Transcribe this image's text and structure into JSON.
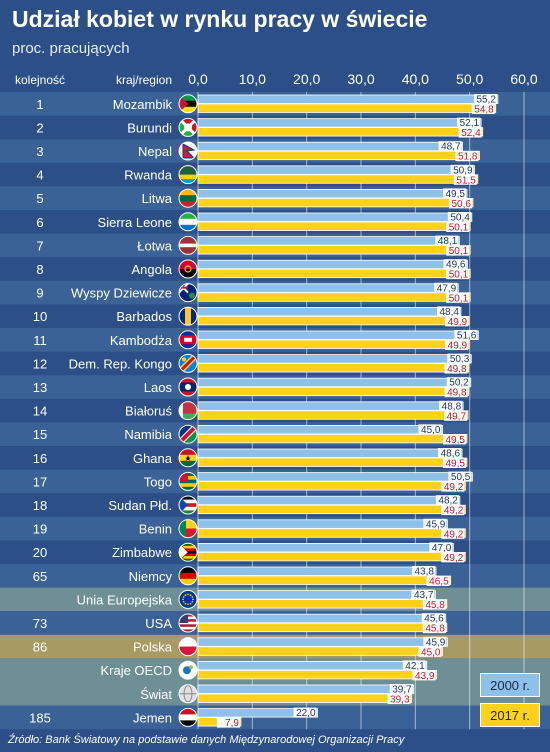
{
  "header": {
    "title": "Udział kobiet w rynku pracy w świecie",
    "subtitle": "proc. pracujących"
  },
  "footer": {
    "source": "Źródło: Bank Światowy na podstawie danych Międzynarodowej Organizacji Pracy"
  },
  "legend": {
    "label_2000": "2000 r.",
    "label_2017": "2017 r."
  },
  "colors": {
    "background": "#2b4f86",
    "row_stripe": "#3a6296",
    "bar_2000": "#8ec1ea",
    "bar_2017": "#ffd21a",
    "highlight_eu": "#6f8f96",
    "highlight_poland": "#a89a63",
    "highlight_oecd": "#6f8f96"
  },
  "chart_data": {
    "type": "bar",
    "orientation": "horizontal",
    "column_headers": {
      "rank": "kolejność",
      "country": "kraj/region"
    },
    "xlim": [
      0,
      60
    ],
    "x_ticks": [
      "0,0",
      "10,0",
      "20,0",
      "30,0",
      "40,0",
      "50,0",
      "60,0"
    ],
    "grid": true,
    "legend_position": "bottom-right",
    "series_names": [
      "2000 r.",
      "2017 r."
    ],
    "rows": [
      {
        "rank": "1",
        "name": "Mozambik",
        "flag": "mozambique-flag-icon",
        "v2000": "55,2",
        "v2017": "54,8"
      },
      {
        "rank": "2",
        "name": "Burundi",
        "flag": "burundi-flag-icon",
        "v2000": "52,1",
        "v2017": "52,4"
      },
      {
        "rank": "3",
        "name": "Nepal",
        "flag": "nepal-flag-icon",
        "v2000": "48,7",
        "v2017": "51,8"
      },
      {
        "rank": "4",
        "name": "Rwanda",
        "flag": "rwanda-flag-icon",
        "v2000": "50,9",
        "v2017": "51,5"
      },
      {
        "rank": "5",
        "name": "Litwa",
        "flag": "lithuania-flag-icon",
        "v2000": "49,5",
        "v2017": "50,6"
      },
      {
        "rank": "6",
        "name": "Sierra Leone",
        "flag": "sierra-leone-flag-icon",
        "v2000": "50,4",
        "v2017": "50,1"
      },
      {
        "rank": "7",
        "name": "Łotwa",
        "flag": "latvia-flag-icon",
        "v2000": "48,1",
        "v2017": "50,1"
      },
      {
        "rank": "8",
        "name": "Angola",
        "flag": "angola-flag-icon",
        "v2000": "49,6",
        "v2017": "50,1"
      },
      {
        "rank": "9",
        "name": "Wyspy Dziewicze",
        "flag": "virgin-islands-flag-icon",
        "v2000": "47,9",
        "v2017": "50,1"
      },
      {
        "rank": "10",
        "name": "Barbados",
        "flag": "barbados-flag-icon",
        "v2000": "48,4",
        "v2017": "49,9"
      },
      {
        "rank": "11",
        "name": "Kambodża",
        "flag": "cambodia-flag-icon",
        "v2000": "51,6",
        "v2017": "49,9"
      },
      {
        "rank": "12",
        "name": "Dem. Rep. Kongo",
        "flag": "dr-congo-flag-icon",
        "v2000": "50,3",
        "v2017": "49,8"
      },
      {
        "rank": "13",
        "name": "Laos",
        "flag": "laos-flag-icon",
        "v2000": "50,2",
        "v2017": "49,8"
      },
      {
        "rank": "14",
        "name": "Białoruś",
        "flag": "belarus-flag-icon",
        "v2000": "48,8",
        "v2017": "49,7"
      },
      {
        "rank": "15",
        "name": "Namibia",
        "flag": "namibia-flag-icon",
        "v2000": "45,0",
        "v2017": "49,5"
      },
      {
        "rank": "16",
        "name": "Ghana",
        "flag": "ghana-flag-icon",
        "v2000": "48,6",
        "v2017": "49,5"
      },
      {
        "rank": "17",
        "name": "Togo",
        "flag": "togo-flag-icon",
        "v2000": "50,5",
        "v2017": "49,2"
      },
      {
        "rank": "18",
        "name": "Sudan Płd.",
        "flag": "south-sudan-flag-icon",
        "v2000": "48,2",
        "v2017": "49,2"
      },
      {
        "rank": "19",
        "name": "Benin",
        "flag": "benin-flag-icon",
        "v2000": "45,9",
        "v2017": "49,2"
      },
      {
        "rank": "20",
        "name": "Zimbabwe",
        "flag": "zimbabwe-flag-icon",
        "v2000": "47,0",
        "v2017": "49,2"
      },
      {
        "rank": "65",
        "name": "Niemcy",
        "flag": "germany-flag-icon",
        "v2000": "43,8",
        "v2017": "46,5"
      },
      {
        "rank": "",
        "name": "Unia Europejska",
        "flag": "eu-flag-icon",
        "v2000": "43,7",
        "v2017": "45,8",
        "highlight": "eu"
      },
      {
        "rank": "73",
        "name": "USA",
        "flag": "usa-flag-icon",
        "v2000": "45,6",
        "v2017": "45,8"
      },
      {
        "rank": "86",
        "name": "Polska",
        "flag": "poland-flag-icon",
        "v2000": "45,9",
        "v2017": "45,0",
        "highlight": "poland"
      },
      {
        "rank": "",
        "name": "Kraje OECD",
        "flag": "oecd-logo-icon",
        "v2000": "42,1",
        "v2017": "43,9",
        "highlight": "oecd"
      },
      {
        "rank": "",
        "name": "Świat",
        "flag": "globe-icon",
        "v2000": "39,7",
        "v2017": "39,3",
        "highlight": "oecd"
      },
      {
        "rank": "185",
        "name": "Jemen",
        "flag": "yemen-flag-icon",
        "v2000": "22,0",
        "v2017": "7,9"
      }
    ]
  }
}
